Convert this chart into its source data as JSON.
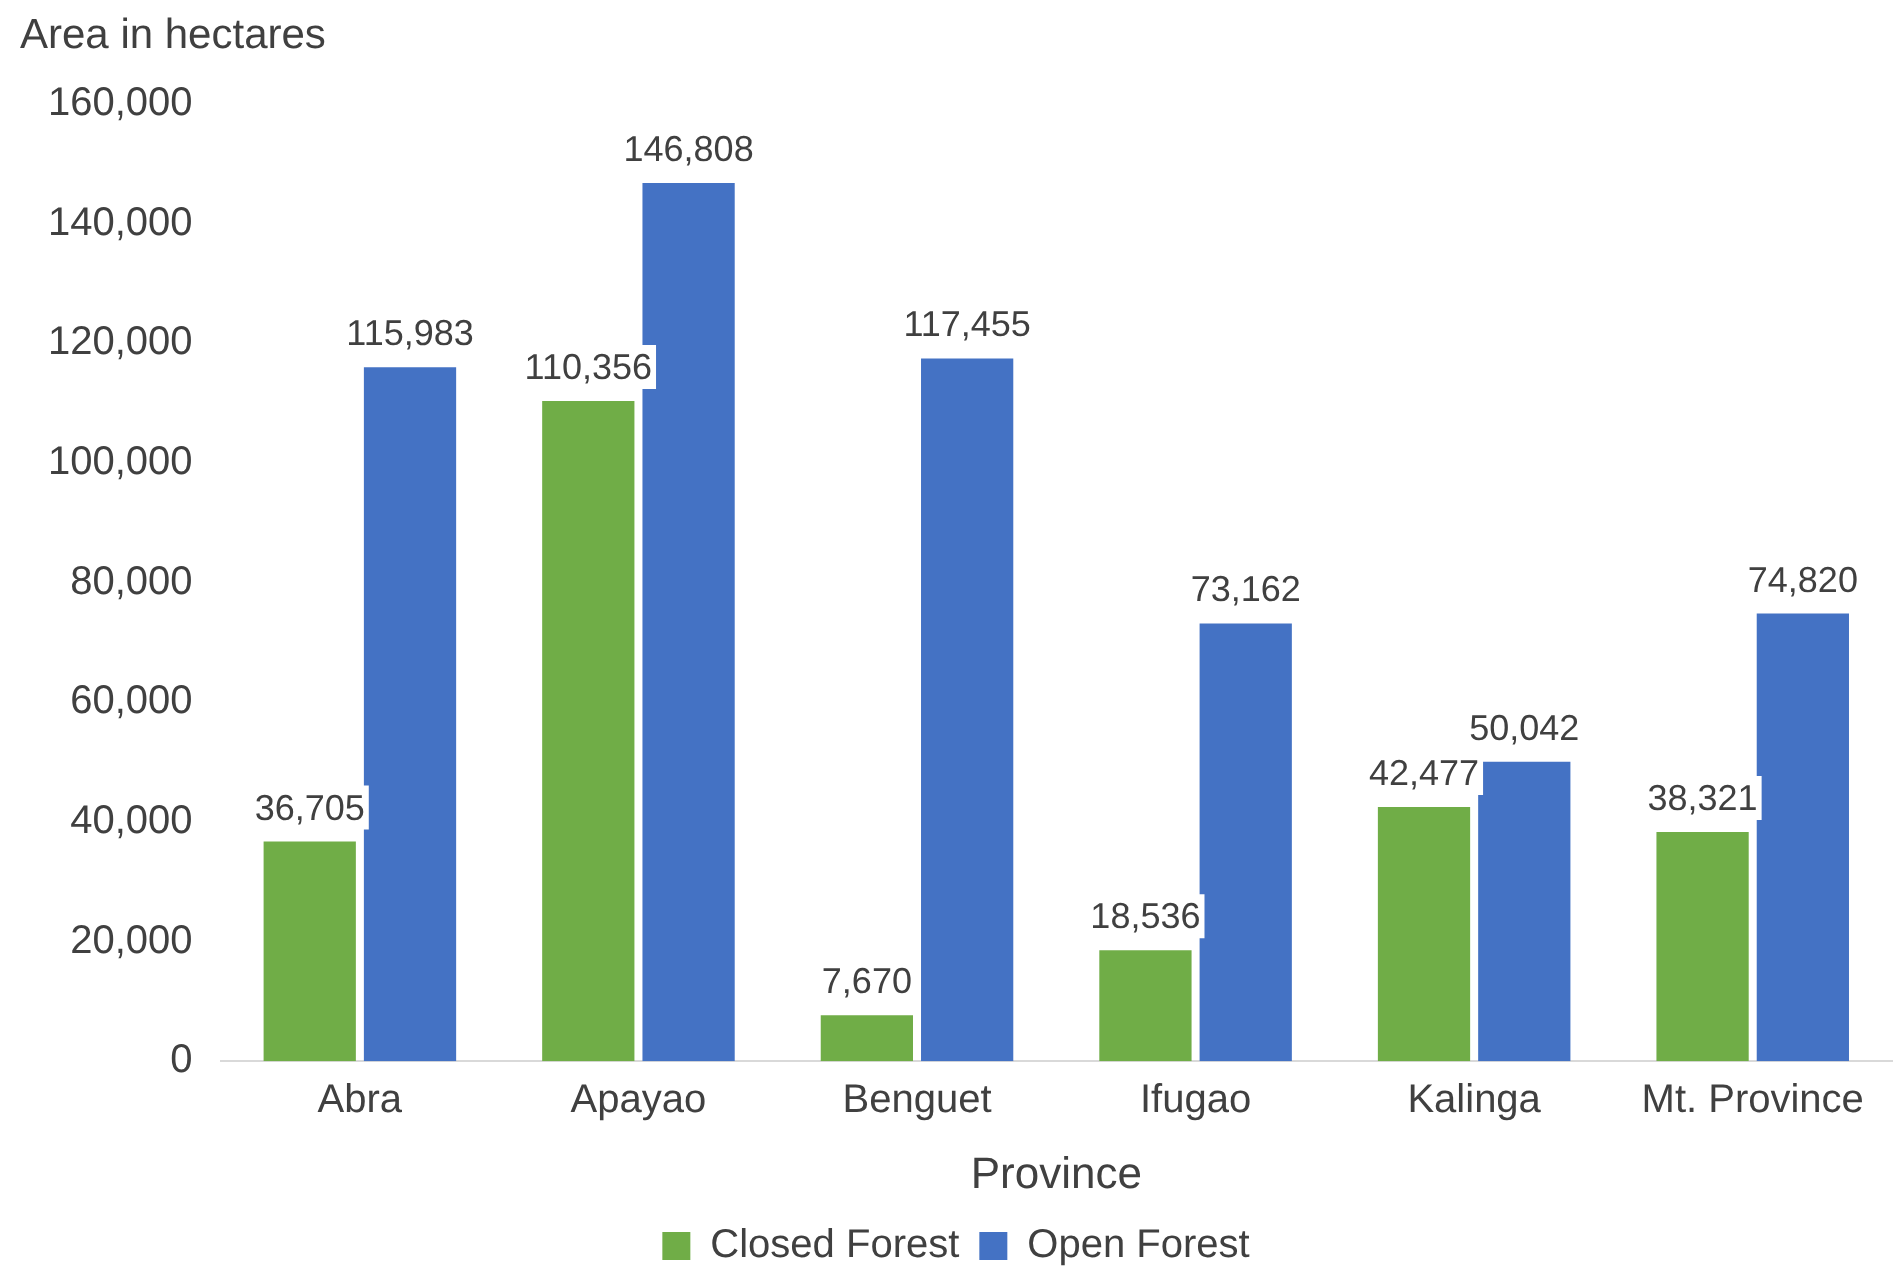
{
  "chart_data": {
    "type": "bar",
    "ylabel": "Area in hectares",
    "xlabel": "Province",
    "categories": [
      "Abra",
      "Apayao",
      "Benguet",
      "Ifugao",
      "Kalinga",
      "Mt. Province"
    ],
    "series": [
      {
        "name": "Closed Forest",
        "color": "#70ad47",
        "values": [
          36705,
          110356,
          7670,
          18536,
          42477,
          38321
        ],
        "value_labels": [
          "36,705",
          "110,356",
          "7,670",
          "18,536",
          "42,477",
          "38,321"
        ]
      },
      {
        "name": "Open Forest",
        "color": "#4472c4",
        "values": [
          115983,
          146808,
          117455,
          73162,
          50042,
          74820
        ],
        "value_labels": [
          "115,983",
          "146,808",
          "117,455",
          "73,162",
          "50,042",
          "74,820"
        ]
      }
    ],
    "ylim": [
      0,
      160000
    ],
    "yticks": [
      {
        "value": 0,
        "label": "0"
      },
      {
        "value": 20000,
        "label": "20,000"
      },
      {
        "value": 40000,
        "label": "40,000"
      },
      {
        "value": 60000,
        "label": "60,000"
      },
      {
        "value": 80000,
        "label": "80,000"
      },
      {
        "value": 100000,
        "label": "100,000"
      },
      {
        "value": 120000,
        "label": "120,000"
      },
      {
        "value": 140000,
        "label": "140,000"
      },
      {
        "value": 160000,
        "label": "160,000"
      }
    ],
    "grid": false,
    "legend": "bottom"
  }
}
